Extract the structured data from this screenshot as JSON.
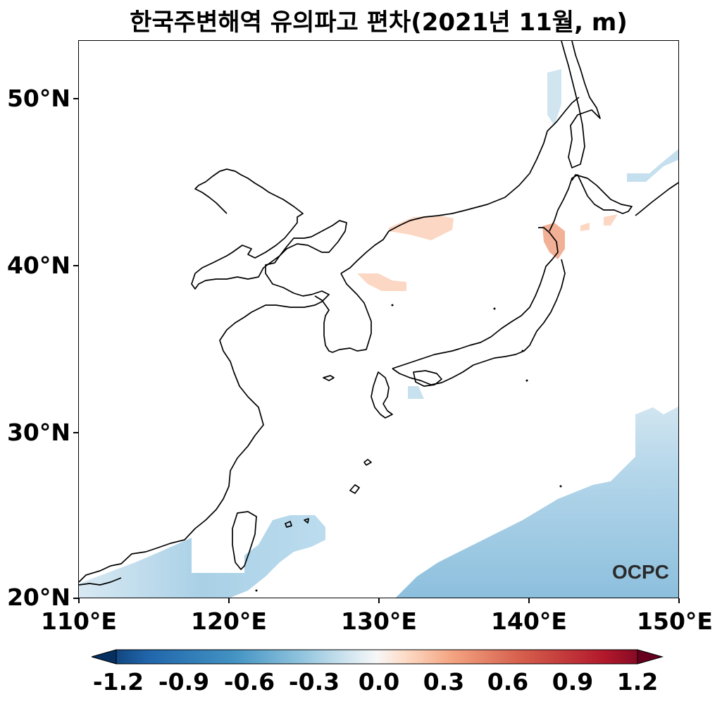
{
  "title": "한국주변해역 유의파고 편차(2021년 11월, m)",
  "lat_labels": [
    "50°N",
    "40°N",
    "30°N",
    "20°N"
  ],
  "lon_labels": [
    "110°E",
    "120°E",
    "130°E",
    "140°E",
    "150°E"
  ],
  "colorbar": {
    "ticks": [
      "-1.2",
      "-0.9",
      "-0.6",
      "-0.3",
      "0.0",
      "0.3",
      "0.6",
      "0.9",
      "1.2"
    ],
    "colors": [
      "#053061",
      "#2166ac",
      "#4393c3",
      "#92c5de",
      "#d1e5f0",
      "#f7f7f7",
      "#fddbc7",
      "#f4a582",
      "#d6604d",
      "#b2182b",
      "#67001f"
    ]
  },
  "logo": "OCPC",
  "anomaly_colors": {
    "light_blue": "#d1e5f0",
    "mid_blue": "#a9cfe5",
    "blue": "#8bbfdc",
    "light_red": "#fbd7c4",
    "red": "#f4b89c"
  }
}
